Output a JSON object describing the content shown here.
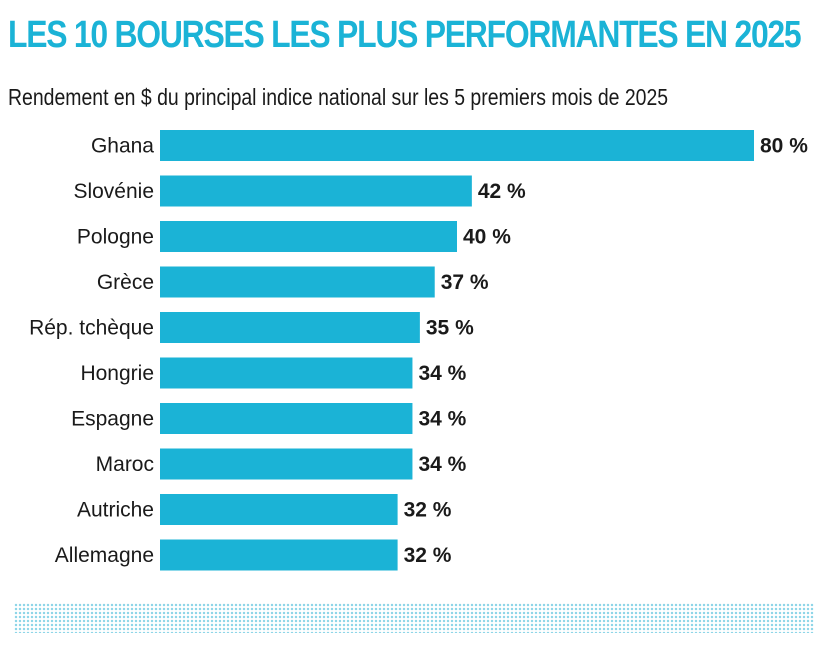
{
  "title": "LES 10 BOURSES LES PLUS PERFORMANTES EN 2025",
  "subtitle": "Rendement en $ du principal indice national sur les 5 premiers mois de 2025",
  "colors": {
    "bar": "#1bb3d6",
    "title": "#1bb3d6",
    "text": "#1a1a1a",
    "dots": "#8fd6e8"
  },
  "chart_data": {
    "type": "bar",
    "orientation": "horizontal",
    "title": "LES 10 BOURSES LES PLUS PERFORMANTES EN 2025",
    "subtitle": "Rendement en $ du principal indice national sur les 5 premiers mois de 2025",
    "categories": [
      "Ghana",
      "Slovénie",
      "Pologne",
      "Grèce",
      "Rép. tchèque",
      "Hongrie",
      "Espagne",
      "Maroc",
      "Autriche",
      "Allemagne"
    ],
    "values": [
      80,
      42,
      40,
      37,
      35,
      34,
      34,
      34,
      32,
      32
    ],
    "value_labels": [
      "80 %",
      "42 %",
      "40 %",
      "37 %",
      "35 %",
      "34 %",
      "34 %",
      "34 %",
      "32 %",
      "32 %"
    ],
    "unit": "%",
    "xlim": [
      0,
      80
    ],
    "grid": false,
    "legend": "none"
  }
}
